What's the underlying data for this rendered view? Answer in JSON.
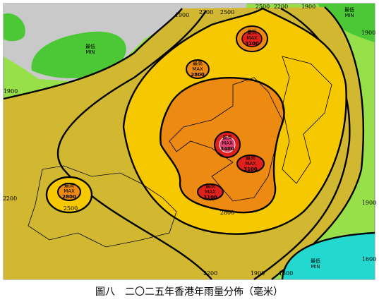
{
  "map": {
    "contour_labels": [
      "1900",
      "2200",
      "2500",
      "2500",
      "2200",
      "1900",
      "1900",
      "1900",
      "2200",
      "2500",
      "2800",
      "1900",
      "1600",
      "2200",
      "1900",
      "1600"
    ],
    "extremes": [
      {
        "label_zh": "最低",
        "label_en": "MIN"
      },
      {
        "label_zh": "最低",
        "label_en": "MIN"
      },
      {
        "label_zh": "最低",
        "label_en": "MIN"
      },
      {
        "label_zh": "最高",
        "label_en": "MAX",
        "value": "3100"
      },
      {
        "label_zh": "最高",
        "label_en": "MAX",
        "value": "2800"
      },
      {
        "label_zh": "最高",
        "label_en": "MAX",
        "value": "3400"
      },
      {
        "label_zh": "最高",
        "label_en": "MAX",
        "value": "3100"
      },
      {
        "label_zh": "最高",
        "label_en": "MAX",
        "value": "3100"
      },
      {
        "label_zh": "最高",
        "label_en": "MAX",
        "value": "2800"
      }
    ],
    "caption": "圖八　二〇二五年香港年雨量分佈（毫米）"
  }
}
